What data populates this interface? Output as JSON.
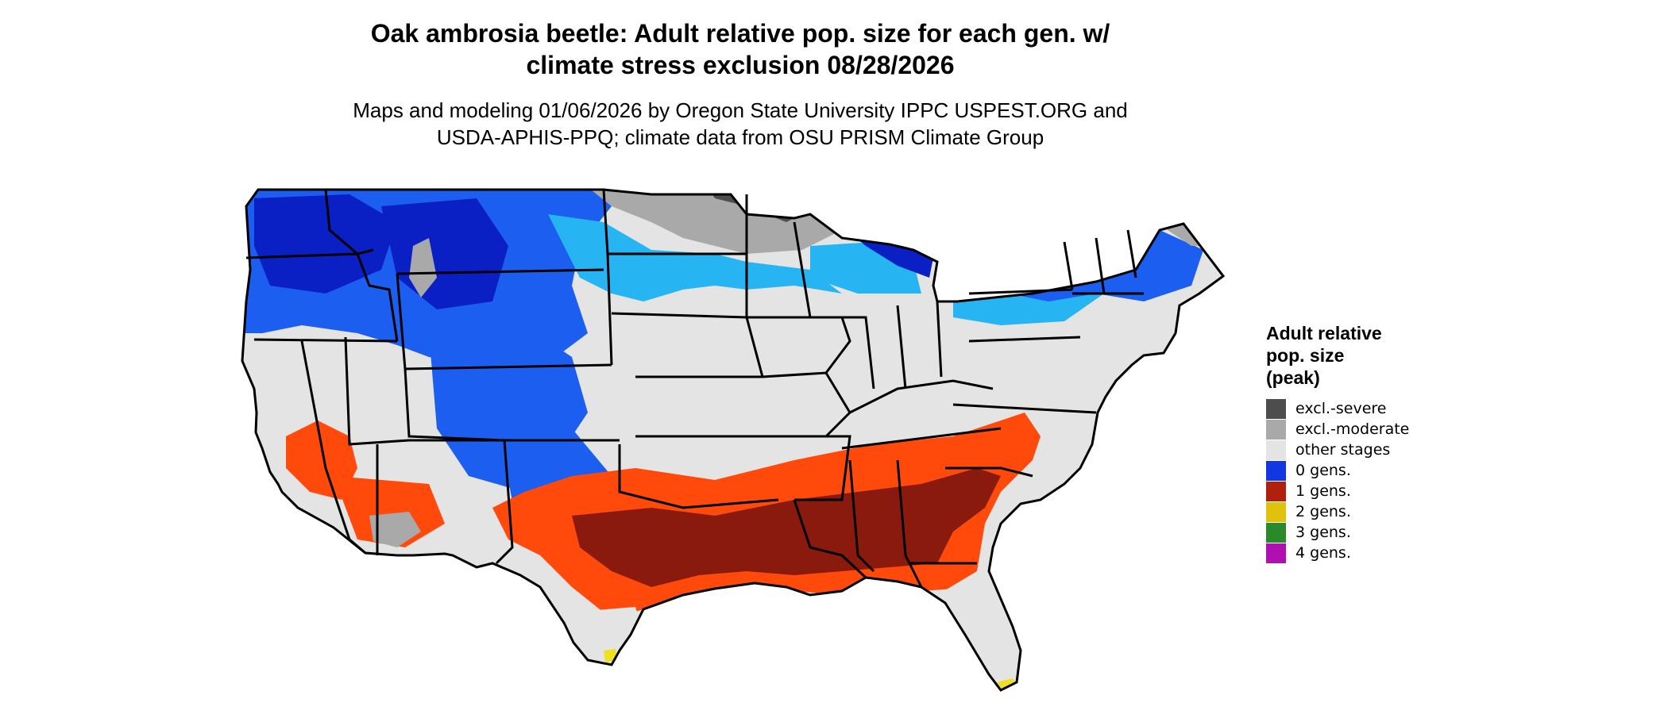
{
  "title": {
    "line1": "Oak ambrosia beetle: Adult relative pop. size for each gen. w/",
    "line2": "climate stress exclusion 08/28/2026"
  },
  "subtitle": {
    "line1": "Maps and modeling 01/06/2026 by Oregon State University IPPC USPEST.ORG and",
    "line2": "USDA-APHIS-PPQ; climate data from OSU PRISM Climate Group"
  },
  "legend": {
    "title_line1": "Adult relative",
    "title_line2": "pop. size",
    "title_line3": "(peak)",
    "items": [
      {
        "label": "excl.-severe",
        "color": "#4d4d4d"
      },
      {
        "label": "excl.-moderate",
        "color": "#a9a9a9"
      },
      {
        "label": "other stages",
        "color": "#e4e4e4"
      },
      {
        "label": "0 gens.",
        "color": "#1137e0"
      },
      {
        "label": "1 gens.",
        "color": "#b0200f"
      },
      {
        "label": "2 gens.",
        "color": "#e0c20d"
      },
      {
        "label": "3 gens.",
        "color": "#2a8a2a"
      },
      {
        "label": "4 gens.",
        "color": "#b010b0"
      }
    ]
  },
  "map": {
    "region": "Contiguous United States",
    "colors": {
      "background": "#e4e4e4",
      "blue_dark": "#0a1fc4",
      "blue_mid": "#1b5ef0",
      "blue_light": "#26b5f2",
      "orange": "#ff4a0c",
      "dark_red": "#8a1a0e",
      "gray": "#a9a9a9",
      "dark_gray": "#4d4d4d",
      "yellow": "#f0e020",
      "border": "#000000"
    }
  }
}
